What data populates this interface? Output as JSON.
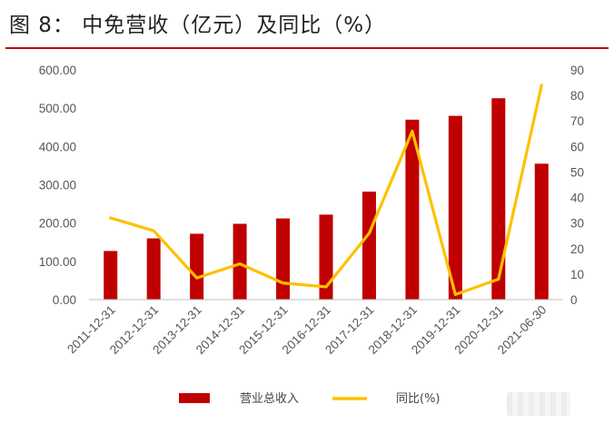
{
  "title": "图 8：   中免营收（亿元）及同比（%）",
  "colors": {
    "bar": "#c00000",
    "line": "#ffc000",
    "rule": "#c00000"
  },
  "chart_data": {
    "type": "bar+line",
    "categories": [
      "2011-12-31",
      "2012-12-31",
      "2013-12-31",
      "2014-12-31",
      "2015-12-31",
      "2016-12-31",
      "2017-12-31",
      "2018-12-31",
      "2019-12-31",
      "2020-12-31",
      "2021-06-30"
    ],
    "series": [
      {
        "name": "营业总收入",
        "type": "bar",
        "axis": "left",
        "values": [
          127,
          160,
          172,
          198,
          212,
          222,
          282,
          470,
          480,
          526,
          355
        ]
      },
      {
        "name": "同比(%)",
        "type": "line",
        "axis": "right",
        "values": [
          32,
          27,
          8.5,
          14,
          6.5,
          5,
          26,
          66,
          2,
          8,
          84
        ]
      }
    ],
    "y_left": {
      "min": 0,
      "max": 600,
      "ticks": [
        "0.00",
        "100.00",
        "200.00",
        "300.00",
        "400.00",
        "500.00",
        "600.00"
      ]
    },
    "y_right": {
      "min": 0,
      "max": 90,
      "ticks": [
        "0",
        "10",
        "20",
        "30",
        "40",
        "50",
        "60",
        "70",
        "80",
        "90"
      ]
    },
    "legend": {
      "position": "bottom",
      "items": [
        "营业总收入",
        "同比(%)"
      ]
    },
    "grid": false
  }
}
